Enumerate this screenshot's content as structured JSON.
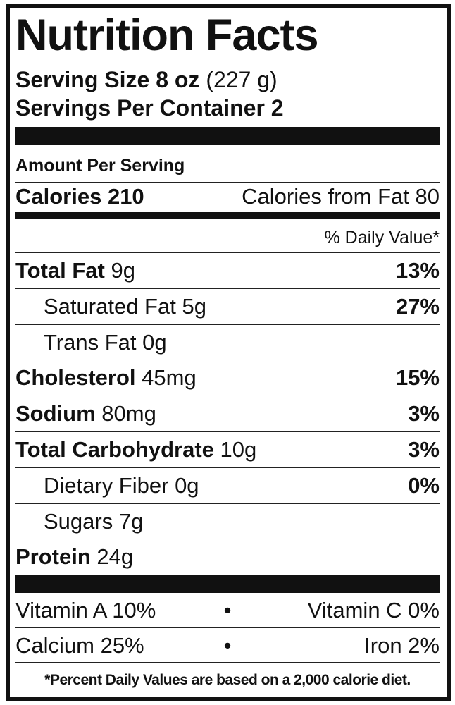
{
  "header": {
    "title": "Nutrition Facts",
    "serving_size": "Serving Size 8 oz",
    "serving_size_grams": "(227 g)",
    "servings_per_container": "Servings Per Container 2"
  },
  "calories": {
    "amount_per_serving": "Amount Per Serving",
    "calories": "Calories 210",
    "calories_from_fat": "Calories from Fat 80",
    "daily_value_heading": "% Daily Value*"
  },
  "nutrients": [
    {
      "name": "Total Fat",
      "amount": "9g",
      "dv": "13%"
    },
    {
      "name": "Saturated Fat",
      "amount": "5g",
      "dv": "27%"
    },
    {
      "name": "Trans Fat",
      "amount": "0g"
    },
    {
      "name": "Cholesterol",
      "amount": "45mg",
      "dv": "15%"
    },
    {
      "name": "Sodium",
      "amount": "80mg",
      "dv": "3%"
    },
    {
      "name": "Total Carbohydrate",
      "amount": "10g",
      "dv": "3%"
    },
    {
      "name": "Dietary Fiber",
      "amount": "0g",
      "dv": "0%"
    },
    {
      "name": "Sugars",
      "amount": "7g"
    },
    {
      "name": "Protein",
      "amount": "24g"
    }
  ],
  "vitamins": [
    {
      "left": "Vitamin A 10%",
      "separator": "•",
      "right": "Vitamin C 0%"
    },
    {
      "left": "Calcium 25%",
      "separator": "•",
      "right": "Iron 2%"
    }
  ],
  "footnote": "*Percent Daily Values are based on a 2,000 calorie diet."
}
